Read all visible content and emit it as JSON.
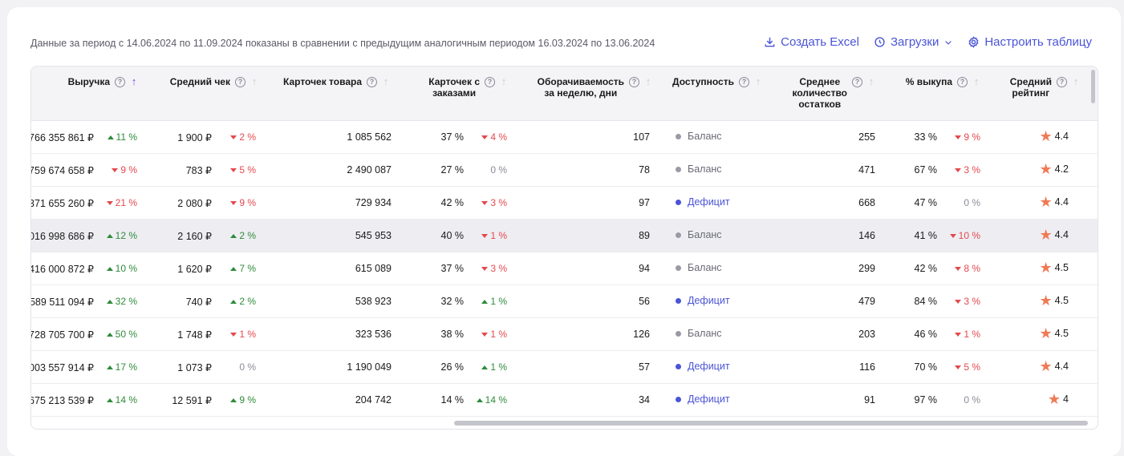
{
  "period_text": "Данные за период с 14.06.2024 по 11.09.2024 показаны в сравнении с предыдущим аналогичным периодом 16.03.2024 по 13.06.2024",
  "actions": {
    "excel": "Создать Excel",
    "downloads": "Загрузки",
    "configure": "Настроить таблицу"
  },
  "columns": {
    "revenue": "Выручка",
    "avg_check": "Средний чек",
    "cards": "Карточек товара",
    "cards_orders_1": "Карточек с",
    "cards_orders_2": "заказами",
    "turnover_1": "Оборачиваемость",
    "turnover_2": "за неделю, дни",
    "availability": "Доступность",
    "avg_stock_1": "Среднее",
    "avg_stock_2": "количество",
    "avg_stock_3": "остатков",
    "buyout": "% выкупа",
    "rating_1": "Средний",
    "rating_2": "рейтинг"
  },
  "status_colors": {
    "Баланс": "#9a9aa6",
    "Дефицит": "#4a54d6"
  },
  "rows": [
    {
      "revenue": "766 355 861 ₽",
      "revenue_delta": "11 %",
      "revenue_dir": "up",
      "check": "1 900 ₽",
      "check_delta": "2 %",
      "check_dir": "down",
      "cards": "1 085 562",
      "orders_pct": "37 %",
      "orders_delta": "4 %",
      "orders_dir": "down",
      "turnover": "107",
      "availability": "Баланс",
      "stock": "255",
      "buyout": "33 %",
      "buyout_delta": "9 %",
      "buyout_dir": "down",
      "rating": "4.4"
    },
    {
      "revenue": "759 674 658 ₽",
      "revenue_delta": "9 %",
      "revenue_dir": "down",
      "check": "783 ₽",
      "check_delta": "5 %",
      "check_dir": "down",
      "cards": "2 490 087",
      "orders_pct": "27 %",
      "orders_delta": "0 %",
      "orders_dir": "neutral",
      "turnover": "78",
      "availability": "Баланс",
      "stock": "471",
      "buyout": "67 %",
      "buyout_delta": "3 %",
      "buyout_dir": "down",
      "rating": "4.2"
    },
    {
      "revenue": "371 655 260 ₽",
      "revenue_delta": "21 %",
      "revenue_dir": "down",
      "check": "2 080 ₽",
      "check_delta": "9 %",
      "check_dir": "down",
      "cards": "729 934",
      "orders_pct": "42 %",
      "orders_delta": "3 %",
      "orders_dir": "down",
      "turnover": "97",
      "availability": "Дефицит",
      "stock": "668",
      "buyout": "47 %",
      "buyout_delta": "0 %",
      "buyout_dir": "neutral",
      "rating": "4.4"
    },
    {
      "revenue": "016 998 686 ₽",
      "revenue_delta": "12 %",
      "revenue_dir": "up",
      "check": "2 160 ₽",
      "check_delta": "2 %",
      "check_dir": "up",
      "cards": "545 953",
      "orders_pct": "40 %",
      "orders_delta": "1 %",
      "orders_dir": "down",
      "turnover": "89",
      "availability": "Баланс",
      "stock": "146",
      "buyout": "41 %",
      "buyout_delta": "10 %",
      "buyout_dir": "down",
      "rating": "4.4",
      "highlight": true
    },
    {
      "revenue": "416 000 872 ₽",
      "revenue_delta": "10 %",
      "revenue_dir": "up",
      "check": "1 620 ₽",
      "check_delta": "7 %",
      "check_dir": "up",
      "cards": "615 089",
      "orders_pct": "37 %",
      "orders_delta": "3 %",
      "orders_dir": "down",
      "turnover": "94",
      "availability": "Баланс",
      "stock": "299",
      "buyout": "42 %",
      "buyout_delta": "8 %",
      "buyout_dir": "down",
      "rating": "4.5"
    },
    {
      "revenue": "589 511 094 ₽",
      "revenue_delta": "32 %",
      "revenue_dir": "up",
      "check": "740 ₽",
      "check_delta": "2 %",
      "check_dir": "up",
      "cards": "538 923",
      "orders_pct": "32 %",
      "orders_delta": "1 %",
      "orders_dir": "up",
      "turnover": "56",
      "availability": "Дефицит",
      "stock": "479",
      "buyout": "84 %",
      "buyout_delta": "3 %",
      "buyout_dir": "down",
      "rating": "4.5"
    },
    {
      "revenue": "728 705 700 ₽",
      "revenue_delta": "50 %",
      "revenue_dir": "up",
      "check": "1 748 ₽",
      "check_delta": "1 %",
      "check_dir": "down",
      "cards": "323 536",
      "orders_pct": "38 %",
      "orders_delta": "1 %",
      "orders_dir": "down",
      "turnover": "126",
      "availability": "Баланс",
      "stock": "203",
      "buyout": "46 %",
      "buyout_delta": "1 %",
      "buyout_dir": "down",
      "rating": "4.5"
    },
    {
      "revenue": "003 557 914 ₽",
      "revenue_delta": "17 %",
      "revenue_dir": "up",
      "check": "1 073 ₽",
      "check_delta": "0 %",
      "check_dir": "neutral",
      "cards": "1 190 049",
      "orders_pct": "26 %",
      "orders_delta": "1 %",
      "orders_dir": "up",
      "turnover": "57",
      "availability": "Дефицит",
      "stock": "116",
      "buyout": "70 %",
      "buyout_delta": "5 %",
      "buyout_dir": "down",
      "rating": "4.4"
    },
    {
      "revenue": "675 213 539 ₽",
      "revenue_delta": "14 %",
      "revenue_dir": "up",
      "check": "12 591 ₽",
      "check_delta": "9 %",
      "check_dir": "up",
      "cards": "204 742",
      "orders_pct": "14 %",
      "orders_delta": "14 %",
      "orders_dir": "up",
      "turnover": "34",
      "availability": "Дефицит",
      "stock": "91",
      "buyout": "97 %",
      "buyout_delta": "0 %",
      "buyout_dir": "neutral",
      "rating": "4"
    }
  ]
}
